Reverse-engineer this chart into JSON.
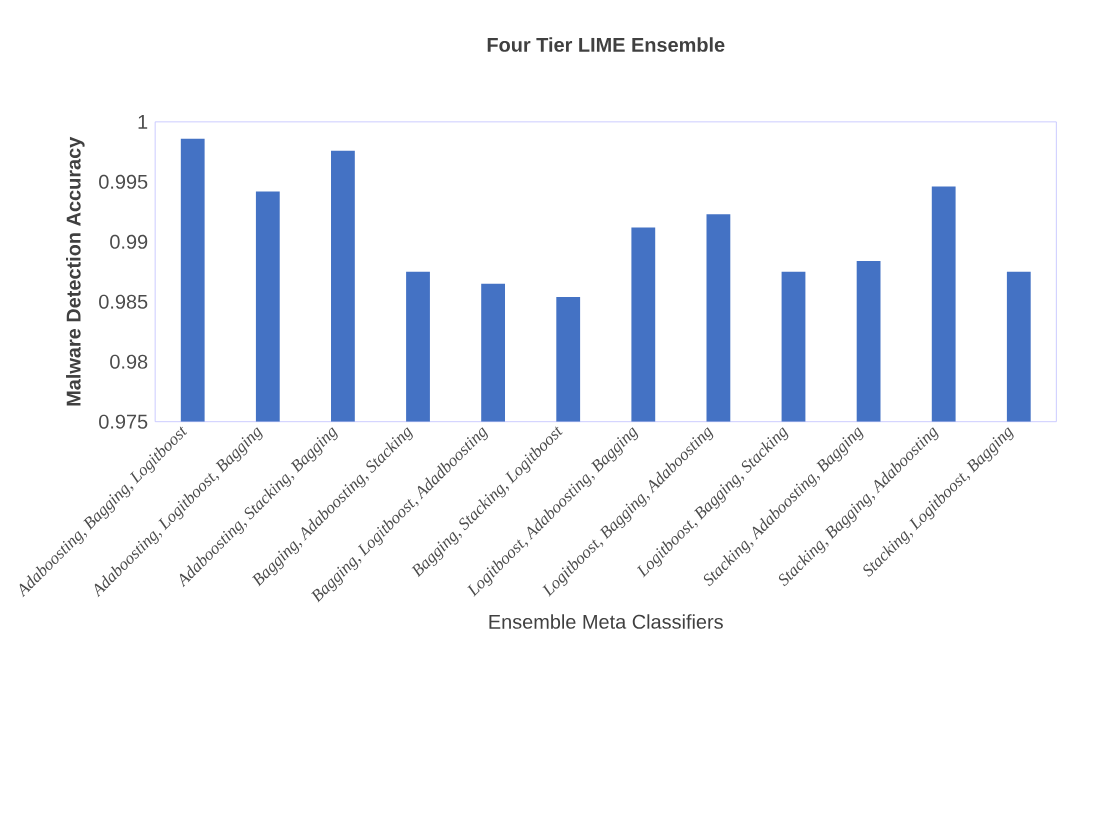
{
  "chart_data": {
    "type": "bar",
    "title": "Four Tier LIME Ensemble",
    "xlabel": "Ensemble Meta Classifiers",
    "ylabel": "Malware Detection Accuracy",
    "categories": [
      "Adaboosting, Bagging, Logitboost",
      "Adaboosting, Logitboost, Bagging",
      "Adaboosting, Stacking, Bagging",
      "Bagging, Adaboosting, Stacking",
      "Bagging, Logitboost, Adadboosting",
      "Bagging, Stacking, Logitboost",
      "Logitboost, Adaboosting, Bagging",
      "Logitboost, Bagging, Adaboosting",
      "Logitboost, Bagging, Stacking",
      "Stacking, Adaboosting, Bagging",
      "Stacking, Bagging, Adaboosting",
      "Stacking, Logitboost, Bagging"
    ],
    "values": [
      0.9986,
      0.9942,
      0.9976,
      0.9875,
      0.9865,
      0.9854,
      0.9912,
      0.9923,
      0.9875,
      0.9884,
      0.9946,
      0.9875
    ],
    "color": "#4472c4",
    "ylim": [
      0.975,
      1
    ],
    "yticks": [
      0.975,
      0.98,
      0.985,
      0.99,
      0.995,
      1
    ],
    "grid": false
  }
}
